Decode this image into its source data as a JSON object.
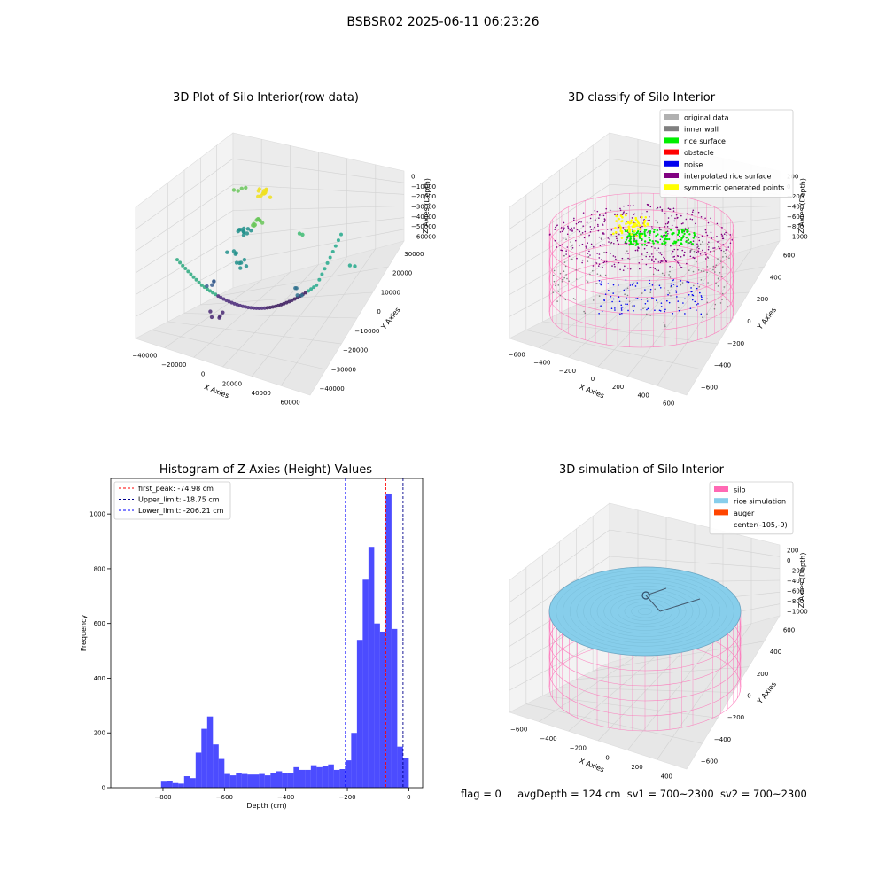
{
  "suptitle": "BSBSR02 2025-06-11 06:23:26",
  "panels": {
    "raw": {
      "title": "3D Plot of Silo Interior(row data)",
      "xlabel": "X Axies",
      "ylabel": "Y Axies",
      "zlabel": "Z Axies (Depth)",
      "xticks": [
        "−40000",
        "−20000",
        "0",
        "20000",
        "40000",
        "60000"
      ],
      "yticks": [
        "−40000",
        "−30000",
        "−20000",
        "−10000",
        "0",
        "10000",
        "20000",
        "30000"
      ],
      "zticks": [
        "0",
        "−10000",
        "−20000",
        "−30000",
        "−40000",
        "−50000",
        "−60000"
      ]
    },
    "classify": {
      "title": "3D classify of Silo Interior",
      "xlabel": "X Axies",
      "ylabel": "Y Axies",
      "zlabel": "Z Axies (Depth)",
      "xticks": [
        "−600",
        "−400",
        "−200",
        "0",
        "200",
        "400",
        "600"
      ],
      "yticks": [
        "−600",
        "−400",
        "−200",
        "0",
        "200",
        "400",
        "600"
      ],
      "zticks": [
        "200",
        "0",
        "−200",
        "−400",
        "−600",
        "−800",
        "−1000"
      ],
      "legend": [
        {
          "label": "original data",
          "color": "#b0b0b0"
        },
        {
          "label": "inner wall",
          "color": "#808080"
        },
        {
          "label": "rice surface",
          "color": "#00ee00"
        },
        {
          "label": "obstacle",
          "color": "#ff0000"
        },
        {
          "label": "noise",
          "color": "#0000ee"
        },
        {
          "label": "interpolated rice surface",
          "color": "#800080"
        },
        {
          "label": "symmetric generated points",
          "color": "#ffff00"
        }
      ]
    },
    "simulation": {
      "title": "3D simulation of Silo Interior",
      "xlabel": "X Axies",
      "ylabel": "Y Axies",
      "zlabel": "Z Axies (Depth)",
      "xticks": [
        "−600",
        "−400",
        "−200",
        "0",
        "200",
        "400"
      ],
      "yticks": [
        "−600",
        "−400",
        "−200",
        "0",
        "200",
        "400",
        "600"
      ],
      "zticks": [
        "200",
        "0",
        "−200",
        "−400",
        "−600",
        "−800",
        "−1000"
      ],
      "legend": [
        {
          "label": "silo",
          "color": "#ff69b4"
        },
        {
          "label": "rice simulation",
          "color": "#87ceeb"
        },
        {
          "label": "auger",
          "color": "#ff4500"
        },
        {
          "label": "center(-105,-9)",
          "color": ""
        }
      ]
    }
  },
  "chart_data": {
    "type": "bar",
    "title": "Histogram of Z-Axies (Height) Values",
    "xlabel": "Depth (cm)",
    "ylabel": "Frequency",
    "xlim": [
      -970,
      45
    ],
    "ylim": [
      0,
      1130
    ],
    "xticks": [
      -800,
      -600,
      -400,
      -200,
      0
    ],
    "yticks": [
      0,
      200,
      400,
      600,
      800,
      1000
    ],
    "bin_width": 18.75,
    "bin_starts": [
      -806.25,
      -787.5,
      -768.75,
      -750,
      -731.25,
      -712.5,
      -693.75,
      -675,
      -656.25,
      -637.5,
      -618.75,
      -600,
      -581.25,
      -562.5,
      -543.75,
      -525,
      -506.25,
      -487.5,
      -468.75,
      -450,
      -431.25,
      -412.5,
      -393.75,
      -375,
      -356.25,
      -337.5,
      -318.75,
      -300,
      -281.25,
      -262.5,
      -243.75,
      -225,
      -206.25,
      -187.5,
      -168.75,
      -150,
      -131.25,
      -112.5,
      -93.75,
      -75,
      -56.25,
      -37.5,
      -18.75
    ],
    "values": [
      22,
      25,
      17,
      15,
      42,
      35,
      128,
      215,
      260,
      158,
      105,
      50,
      45,
      52,
      50,
      48,
      48,
      50,
      45,
      55,
      60,
      55,
      55,
      75,
      65,
      65,
      82,
      75,
      80,
      85,
      65,
      68,
      100,
      200,
      540,
      760,
      880,
      600,
      570,
      1075,
      580,
      150,
      110
    ],
    "bar_color": "#0000ff",
    "vlines": [
      {
        "label": "first_peak: -74.98 cm",
        "x": -74.98,
        "color": "#ff0000"
      },
      {
        "label": "Upper_limit: -18.75 cm",
        "x": -18.75,
        "color": "#00008b"
      },
      {
        "label": "Lower_limit: -206.21 cm",
        "x": -206.21,
        "color": "#0000ff"
      }
    ],
    "legend_position": "top-left"
  },
  "status": {
    "flag": "flag = 0",
    "avg": "avgDepth = 124 cm",
    "sv1": "sv1 = 700~2300",
    "sv2": "sv2 = 700~2300"
  }
}
